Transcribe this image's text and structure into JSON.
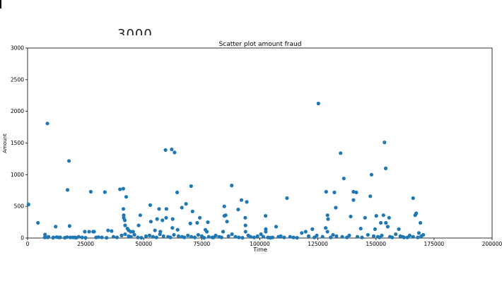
{
  "fragments": {
    "cut_heading": "3000"
  },
  "chart_data": {
    "type": "scatter",
    "title": "Scatter plot amount fraud",
    "xlabel": "Time",
    "ylabel": "Amount",
    "xlim": [
      0,
      200000
    ],
    "ylim": [
      0,
      3000
    ],
    "xticks": [
      0,
      25000,
      50000,
      75000,
      100000,
      125000,
      150000,
      175000,
      200000
    ],
    "yticks": [
      0,
      500,
      1000,
      1500,
      2000,
      2500,
      3000
    ],
    "grid": false,
    "legend": "none",
    "marker_color": "#1f77b4",
    "series": [
      {
        "x": [
          406,
          4462,
          7519,
          8528,
          8614,
          11080,
          12093,
          14073,
          17187,
          17838,
          18088,
          18399,
          20451,
          24620,
          26523,
          27219,
          28219,
          28658,
          29531,
          33276,
          34634,
          36184,
          39785,
          41203,
          41233,
          41397,
          41413,
          41851,
          42008,
          42474,
          43028,
          43494,
          44393,
          45463,
          47826,
          48533,
          52814,
          53076,
          54846,
          55760,
          56624,
          57163,
          58067,
          59385,
          59669,
          59777,
          62080,
          62341,
          62467,
          63297,
          64412,
          64585,
          66428,
          68207,
          70071,
          70417,
          71033,
          73026,
          74159,
          76575,
          77182,
          77627,
          79540,
          84204,
          84694,
          84708,
          85285,
          85867,
          87883,
          90676,
          92092,
          93742,
          93824,
          93853,
          94362,
          102480,
          102542,
          102572,
          106998,
          111690,
          118040,
          119714,
          122608,
          125200,
          128331,
          128543,
          129095,
          129147,
          129371,
          132086,
          132688,
          134769,
          136170,
          139107,
          140292,
          140308,
          141565,
          143434,
          145289,
          147548,
          148074,
          149587,
          150139,
          152078,
          153204,
          153653,
          154180,
          154278,
          155054,
          155662,
          159844,
          162045,
          165995,
          166883,
          167338,
          168467,
          169142,
          170348,
          7400,
          9000,
          11000,
          12500,
          13500,
          16000,
          17000,
          19500,
          21000,
          22000,
          23500,
          25000,
          30500,
          32000,
          34000,
          37000,
          38500,
          40500,
          42000,
          43500,
          44500,
          46000,
          47500,
          49000,
          51000,
          52500,
          54000,
          55500,
          57000,
          58500,
          60500,
          61500,
          63000,
          65000,
          66500,
          67500,
          69000,
          70500,
          72000,
          73500,
          75000,
          76000,
          78000,
          80000,
          81000,
          82500,
          83500,
          86500,
          88000,
          89500,
          91000,
          92500,
          95000,
          96000,
          97500,
          99000,
          100500,
          101500,
          103500,
          104500,
          105500,
          108000,
          109000,
          110500,
          113000,
          114500,
          116000,
          121000,
          123500,
          124500,
          127000,
          130500,
          131500,
          133000,
          135500,
          137500,
          138500,
          142000,
          144000,
          146500,
          149000,
          150800,
          151500,
          152500,
          156000,
          157000,
          158500,
          160500,
          161500,
          163500,
          164500,
          166000,
          168000,
          169500
        ],
        "y": [
          530,
          240,
          55,
          1809,
          10,
          10,
          180,
          10,
          760,
          1218,
          190,
          10,
          10,
          100,
          100,
          730,
          100,
          100,
          10,
          725,
          120,
          110,
          770,
          780,
          460,
          360,
          320,
          280,
          200,
          650,
          150,
          120,
          100,
          100,
          200,
          360,
          520,
          260,
          120,
          300,
          460,
          100,
          280,
          1390,
          320,
          460,
          1400,
          160,
          300,
          1350,
          720,
          130,
          480,
          540,
          230,
          820,
          420,
          240,
          320,
          130,
          100,
          250,
          10,
          100,
          500,
          350,
          360,
          260,
          830,
          450,
          600,
          320,
          200,
          100,
          570,
          350,
          140,
          100,
          180,
          630,
          80,
          100,
          140,
          2125,
          160,
          730,
          100,
          360,
          300,
          720,
          480,
          1340,
          940,
          340,
          730,
          600,
          720,
          150,
          320,
          660,
          1000,
          140,
          350,
          240,
          360,
          1510,
          1100,
          240,
          180,
          320,
          140,
          10,
          630,
          360,
          390,
          80,
          240,
          50,
          10,
          20,
          5,
          15,
          10,
          5,
          15,
          10,
          5,
          20,
          10,
          5,
          15,
          10,
          5,
          20,
          10,
          40,
          60,
          30,
          20,
          50,
          10,
          5,
          30,
          40,
          20,
          10,
          60,
          30,
          20,
          10,
          50,
          30,
          20,
          10,
          40,
          20,
          10,
          50,
          30,
          5,
          20,
          10,
          40,
          20,
          10,
          30,
          60,
          20,
          10,
          5,
          40,
          20,
          10,
          30,
          60,
          20,
          10,
          5,
          10,
          20,
          30,
          10,
          20,
          10,
          5,
          30,
          10,
          40,
          20,
          10,
          50,
          30,
          20,
          10,
          40,
          20,
          10,
          50,
          30,
          20,
          10,
          40,
          20,
          10,
          60,
          30,
          20,
          10,
          40,
          20,
          10,
          30
        ]
      }
    ]
  }
}
